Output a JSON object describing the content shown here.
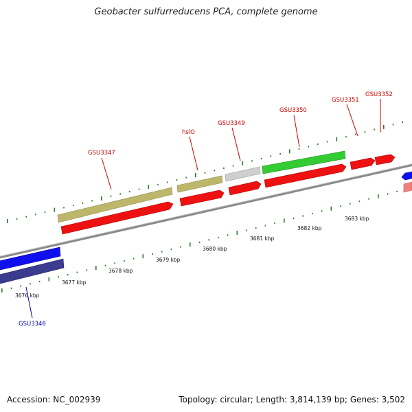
{
  "title": "Geobacter sulfurreducens PCA, complete genome",
  "footer": {
    "accession": "Accession: NC_002939",
    "summary": "Topology: circular; Length: 3,814,139 bp; Genes: 3,502"
  },
  "colors": {
    "label_top": "#cc0000",
    "label_bottom": "#0000aa",
    "tick": "#2a7a2a",
    "backbone": "#888888",
    "cds_red": "#ee1111",
    "cds_green": "#33cc33",
    "cds_khaki": "#bdb76b",
    "cds_grey": "#c8c8c8",
    "cds_blue": "#1010ee",
    "cds_navy": "#3b3b8f",
    "cds_pink": "#f08080"
  },
  "scale_labels": [
    "3676 kbp",
    "3677 kbp",
    "3678 kbp",
    "3679 kbp",
    "3680 kbp",
    "3681 kbp",
    "3682 kbp",
    "3683 kbp"
  ],
  "gene_labels": {
    "gsu3347": "GSU3347",
    "hslo": "hslO",
    "gsu3349": "GSU3349",
    "gsu3350": "GSU3350",
    "gsu3351": "GSU3351",
    "gsu3352": "GSU3352",
    "gsu3346": "GSU3346"
  }
}
